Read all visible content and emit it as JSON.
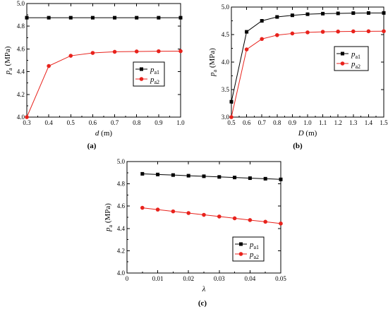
{
  "chart_data": [
    {
      "type": "line",
      "panel_label": "(a)",
      "xlabel": {
        "var": "d",
        "unit": " (m)"
      },
      "ylabel": {
        "var": "p",
        "sub": "a",
        "unit": " (MPa)"
      },
      "xlim": [
        0.3,
        1.0
      ],
      "ylim": [
        4.0,
        5.0
      ],
      "xticks": [
        "0.3",
        "0.4",
        "0.5",
        "0.6",
        "0.7",
        "0.8",
        "0.9",
        "1.0"
      ],
      "yticks": [
        "4.0",
        "4.2",
        "4.4",
        "4.6",
        "4.8",
        "5.0"
      ],
      "x": [
        0.3,
        0.4,
        0.5,
        0.6,
        0.7,
        0.8,
        0.9,
        1.0
      ],
      "legend_position": "middle-right",
      "series": [
        {
          "name": "pa1",
          "name_var": "p",
          "name_sub": "a1",
          "color": "#000000",
          "marker": "square",
          "values": [
            4.875,
            4.875,
            4.875,
            4.875,
            4.875,
            4.875,
            4.875,
            4.875
          ]
        },
        {
          "name": "pa2",
          "name_var": "p",
          "name_sub": "a2",
          "color": "#e8221c",
          "marker": "circle",
          "values": [
            4.0,
            4.45,
            4.54,
            4.565,
            4.575,
            4.578,
            4.58,
            4.581
          ]
        }
      ]
    },
    {
      "type": "line",
      "panel_label": "(b)",
      "xlabel": {
        "var": "D",
        "unit": " (m)"
      },
      "ylabel": {
        "var": "p",
        "sub": "a",
        "unit": " (MPa)"
      },
      "xlim": [
        0.5,
        1.5
      ],
      "ylim": [
        3.0,
        5.0
      ],
      "xticks": [
        "0.5",
        "0.6",
        "0.7",
        "0.8",
        "0.9",
        "1.0",
        "1.1",
        "1.2",
        "1.3",
        "1.4",
        "1.5"
      ],
      "yticks": [
        "3.0",
        "3.5",
        "4.0",
        "4.5",
        "5.0"
      ],
      "x": [
        0.5,
        0.6,
        0.7,
        0.8,
        0.9,
        1.0,
        1.1,
        1.2,
        1.3,
        1.4,
        1.5
      ],
      "legend_position": "middle-right",
      "series": [
        {
          "name": "pa1",
          "name_var": "p",
          "name_sub": "a1",
          "color": "#000000",
          "marker": "square",
          "values": [
            3.28,
            4.55,
            4.75,
            4.82,
            4.85,
            4.87,
            4.88,
            4.885,
            4.89,
            4.892,
            4.893
          ]
        },
        {
          "name": "pa2",
          "name_var": "p",
          "name_sub": "a2",
          "color": "#e8221c",
          "marker": "circle",
          "values": [
            3.0,
            4.23,
            4.42,
            4.49,
            4.52,
            4.54,
            4.55,
            4.555,
            4.558,
            4.56,
            4.561
          ]
        }
      ]
    },
    {
      "type": "line",
      "panel_label": "(c)",
      "xlabel": {
        "var": "λ",
        "unit": ""
      },
      "ylabel": {
        "var": "p",
        "sub": "a",
        "unit": " (MPa)"
      },
      "xlim": [
        0,
        0.05
      ],
      "ylim": [
        4.0,
        5.0
      ],
      "xticks": [
        "0",
        "0.01",
        "0.02",
        "0.03",
        "0.04",
        "0.05"
      ],
      "yticks": [
        "4.0",
        "4.2",
        "4.4",
        "4.6",
        "4.8",
        "5.0"
      ],
      "x": [
        0.005,
        0.01,
        0.015,
        0.02,
        0.025,
        0.03,
        0.035,
        0.04,
        0.045,
        0.05
      ],
      "legend_position": "lower-right",
      "series": [
        {
          "name": "pa1",
          "name_var": "p",
          "name_sub": "a1",
          "color": "#000000",
          "marker": "square",
          "values": [
            4.89,
            4.884,
            4.879,
            4.873,
            4.868,
            4.862,
            4.857,
            4.851,
            4.846,
            4.84
          ]
        },
        {
          "name": "pa2",
          "name_var": "p",
          "name_sub": "a2",
          "color": "#e8221c",
          "marker": "circle",
          "values": [
            4.585,
            4.569,
            4.553,
            4.538,
            4.522,
            4.507,
            4.491,
            4.475,
            4.46,
            4.444
          ]
        }
      ]
    }
  ]
}
